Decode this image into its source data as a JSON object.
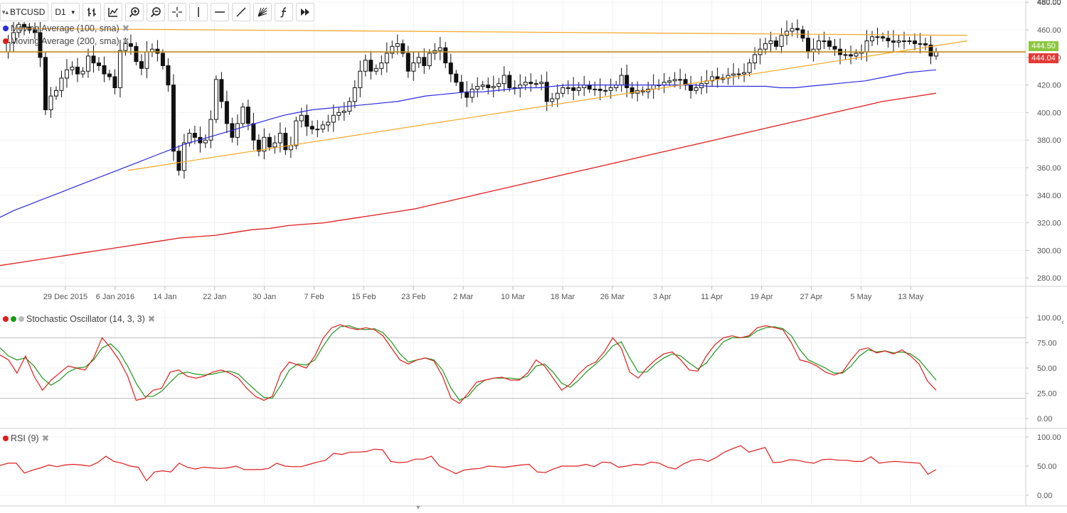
{
  "toolbar": {
    "symbol": "BTCUSD",
    "timeframe": "D1",
    "tools": [
      "candle-type-icon",
      "indicator-icon",
      "zoom-in-icon",
      "zoom-out-icon",
      "crosshair-icon",
      "vertical-line-icon",
      "horizontal-line-icon",
      "trend-line-icon",
      "fibonacci-fan-icon",
      "function-icon",
      "fast-forward-icon"
    ]
  },
  "main_legend": [
    {
      "label": "Moving Average (100, sma)",
      "color": "#2b2be0"
    },
    {
      "label": "Moving Average (200, sma)",
      "color": "#e01c1c"
    }
  ],
  "price_labels": {
    "top": {
      "text": "444.50",
      "color": "#8cc63f"
    },
    "bottom": {
      "text": "444.04",
      "color": "#e53935"
    }
  },
  "x_axis": {
    "labels": [
      "29 Dec 2015",
      "6 Jan 2016",
      "14 Jan",
      "22 Jan",
      "30 Jan",
      "7 Feb",
      "15 Feb",
      "23 Feb",
      "2 Mar",
      "10 Mar",
      "18 Mar",
      "26 Mar",
      "3 Apr",
      "11 Apr",
      "19 Apr",
      "27 Apr",
      "5 May",
      "13 May"
    ]
  },
  "stoch_legend": {
    "label": "Stochastic Oscillator (14, 3, 3)",
    "colors": [
      "#e01c1c",
      "#1a9a1a",
      "#bbbbbb"
    ]
  },
  "rsi_legend": {
    "label": "RSI (9)",
    "color": "#e01c1c"
  },
  "chart_data": [
    {
      "type": "candlestick",
      "title": "BTCUSD D1",
      "x_labels": [
        "29 Dec 2015",
        "6 Jan 2016",
        "14 Jan",
        "22 Jan",
        "30 Jan",
        "7 Feb",
        "15 Feb",
        "23 Feb",
        "2 Mar",
        "10 Mar",
        "18 Mar",
        "26 Mar",
        "3 Apr",
        "11 Apr",
        "19 Apr",
        "27 Apr",
        "5 May",
        "13 May"
      ],
      "yticks": [
        280,
        300,
        320,
        340,
        360,
        380,
        400,
        420,
        440,
        460,
        480
      ],
      "ylim": [
        271,
        481
      ],
      "close_prices": [
        444,
        451,
        458,
        464,
        462,
        460,
        458,
        440,
        402,
        412,
        416,
        425,
        431,
        433,
        428,
        430,
        441,
        436,
        434,
        428,
        426,
        418,
        445,
        450,
        448,
        437,
        432,
        444,
        446,
        443,
        434,
        420,
        372,
        358,
        378,
        385,
        382,
        378,
        380,
        395,
        424,
        408,
        392,
        382,
        392,
        404,
        392,
        380,
        372,
        382,
        375,
        378,
        385,
        373,
        376,
        394,
        398,
        390,
        388,
        388,
        391,
        393,
        398,
        400,
        401,
        408,
        418,
        430,
        438,
        430,
        432,
        436,
        443,
        448,
        450,
        443,
        430,
        436,
        440,
        434,
        443,
        445,
        447,
        436,
        428,
        422,
        415,
        411,
        417,
        419,
        420,
        418,
        419,
        421,
        427,
        418,
        418,
        420,
        422,
        421,
        421,
        422,
        408,
        410,
        414,
        418,
        418,
        416,
        418,
        420,
        417,
        417,
        416,
        416,
        418,
        420,
        427,
        418,
        414,
        416,
        415,
        417,
        420,
        420,
        422,
        423,
        424,
        424,
        420,
        416,
        418,
        421,
        423,
        426,
        424,
        425,
        427,
        428,
        428,
        429,
        436,
        442,
        446,
        450,
        452,
        448,
        456,
        459,
        461,
        460,
        454,
        444,
        446,
        452,
        452,
        448,
        446,
        442,
        442,
        441,
        443,
        444,
        452,
        455,
        455,
        454,
        452,
        451,
        452,
        452,
        452,
        450,
        450,
        449,
        441,
        444
      ],
      "series": [
        {
          "name": "Moving Average (100, sma)",
          "values": [
            324,
            329,
            333,
            337,
            341,
            345,
            349,
            353,
            357,
            361,
            365,
            369,
            373,
            377,
            380,
            383,
            386,
            389,
            392,
            395,
            398,
            400,
            402,
            403,
            404,
            405,
            406,
            407,
            408,
            410,
            412,
            413,
            414,
            415,
            415,
            416,
            417,
            418,
            418,
            419,
            420,
            420,
            420,
            420,
            420,
            420,
            420,
            420,
            420,
            420,
            419,
            419,
            419,
            419,
            419,
            418,
            418,
            419,
            420,
            421,
            422,
            423,
            425,
            427,
            429,
            430,
            431
          ]
        },
        {
          "name": "Moving Average (200, sma)",
          "values": [
            289,
            291,
            293,
            295,
            297,
            299,
            301,
            303,
            305,
            307,
            309,
            310,
            311,
            313,
            315,
            316,
            318,
            319,
            320,
            322,
            324,
            326,
            328,
            330,
            333,
            336,
            339,
            342,
            345,
            348,
            351,
            354,
            357,
            360,
            363,
            366,
            369,
            372,
            375,
            378,
            381,
            384,
            387,
            390,
            393,
            396,
            399,
            402,
            405,
            408,
            410,
            412,
            414
          ]
        },
        {
          "name": "horizontal level",
          "values": [
            444
          ]
        },
        {
          "name": "trend line upper",
          "values": [
            461,
            456
          ]
        },
        {
          "name": "trend line lower",
          "values": [
            358,
            452
          ]
        }
      ]
    },
    {
      "type": "line",
      "title": "Stochastic Oscillator (14, 3, 3)",
      "yticks": [
        0,
        25,
        50,
        75,
        100
      ],
      "ylim": [
        -5,
        105
      ],
      "levels": [
        20,
        80
      ],
      "series": [
        {
          "name": "%K",
          "values": [
            63,
            58,
            45,
            62,
            42,
            28,
            38,
            45,
            52,
            50,
            48,
            60,
            80,
            70,
            58,
            42,
            18,
            20,
            28,
            30,
            46,
            48,
            42,
            40,
            42,
            46,
            48,
            45,
            40,
            30,
            22,
            18,
            22,
            45,
            56,
            53,
            50,
            62,
            80,
            90,
            93,
            90,
            88,
            90,
            88,
            82,
            70,
            58,
            54,
            58,
            60,
            57,
            42,
            20,
            15,
            25,
            36,
            38,
            40,
            41,
            38,
            38,
            45,
            58,
            52,
            40,
            28,
            34,
            44,
            52,
            56,
            66,
            80,
            70,
            46,
            40,
            50,
            58,
            64,
            66,
            58,
            48,
            47,
            62,
            73,
            80,
            82,
            80,
            82,
            90,
            92,
            90,
            88,
            75,
            58,
            56,
            52,
            46,
            43,
            46,
            58,
            68,
            70,
            65,
            67,
            64,
            68,
            62,
            54,
            37,
            28
          ]
        },
        {
          "name": "%D",
          "values": [
            70,
            62,
            58,
            60,
            52,
            40,
            33,
            38,
            46,
            50,
            51,
            58,
            70,
            74,
            66,
            52,
            35,
            22,
            22,
            27,
            36,
            44,
            46,
            44,
            43,
            44,
            46,
            47,
            44,
            36,
            28,
            21,
            20,
            33,
            48,
            54,
            53,
            58,
            72,
            84,
            91,
            92,
            89,
            88,
            89,
            85,
            76,
            64,
            56,
            58,
            60,
            58,
            48,
            30,
            18,
            22,
            32,
            38,
            40,
            40,
            40,
            39,
            42,
            52,
            54,
            46,
            35,
            31,
            38,
            47,
            54,
            62,
            72,
            76,
            60,
            46,
            46,
            54,
            60,
            64,
            62,
            55,
            49,
            55,
            66,
            76,
            80,
            80,
            81,
            87,
            90,
            91,
            89,
            82,
            68,
            58,
            54,
            50,
            45,
            45,
            52,
            62,
            68,
            66,
            67,
            65,
            66,
            64,
            58,
            48,
            38
          ]
        }
      ]
    },
    {
      "type": "line",
      "title": "RSI (9)",
      "yticks": [
        0,
        50,
        100
      ],
      "ylim": [
        -5,
        105
      ],
      "series": [
        {
          "name": "RSI (9)",
          "values": [
            51,
            55,
            55,
            38,
            43,
            47,
            52,
            49,
            52,
            53,
            52,
            50,
            56,
            67,
            58,
            55,
            50,
            48,
            25,
            40,
            42,
            40,
            55,
            48,
            45,
            48,
            47,
            46,
            47,
            50,
            44,
            44,
            44,
            46,
            55,
            50,
            49,
            49,
            53,
            57,
            60,
            72,
            70,
            74,
            74,
            75,
            79,
            78,
            58,
            56,
            57,
            62,
            62,
            67,
            50,
            44,
            37,
            43,
            45,
            46,
            50,
            49,
            48,
            50,
            52,
            53,
            40,
            39,
            45,
            50,
            50,
            50,
            53,
            49,
            57,
            56,
            48,
            50,
            53,
            52,
            57,
            55,
            48,
            45,
            54,
            60,
            62,
            58,
            65,
            74,
            80,
            85,
            74,
            78,
            82,
            56,
            57,
            61,
            60,
            57,
            55,
            61,
            62,
            60,
            60,
            58,
            58,
            66,
            55,
            57,
            58,
            57,
            56,
            55,
            36,
            44
          ]
        }
      ]
    }
  ]
}
